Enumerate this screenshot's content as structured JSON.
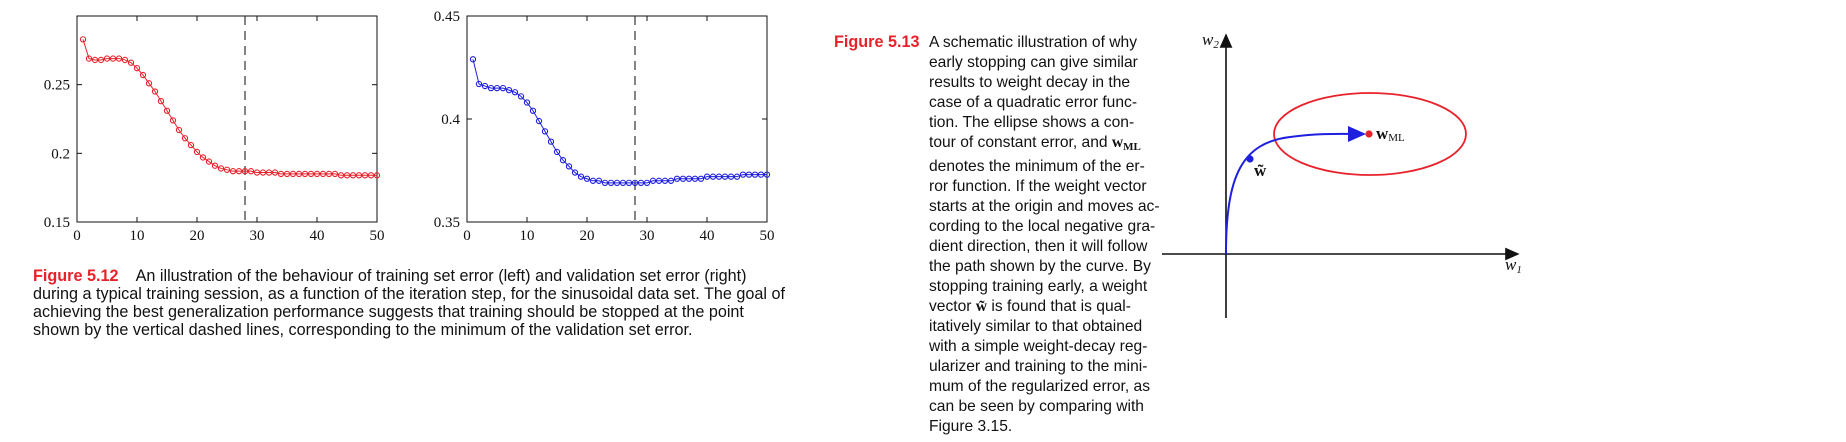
{
  "charts": [
    {
      "type": "scatter",
      "series": [
        {
          "x": [
            1,
            2,
            3,
            4,
            5,
            6,
            7,
            8,
            9,
            10,
            11,
            12,
            13,
            14,
            15,
            16,
            17,
            18,
            19,
            20,
            21,
            22,
            23,
            24,
            25,
            26,
            27,
            28,
            29,
            30,
            31,
            32,
            33,
            34,
            35,
            36,
            37,
            38,
            39,
            40,
            41,
            42,
            43,
            44,
            45,
            46,
            47,
            48,
            49,
            50
          ],
          "values": [
            0.283,
            0.269,
            0.268,
            0.268,
            0.269,
            0.269,
            0.269,
            0.268,
            0.266,
            0.262,
            0.257,
            0.251,
            0.245,
            0.238,
            0.231,
            0.224,
            0.217,
            0.211,
            0.206,
            0.201,
            0.197,
            0.194,
            0.191,
            0.189,
            0.188,
            0.187,
            0.187,
            0.187,
            0.187,
            0.186,
            0.186,
            0.186,
            0.186,
            0.185,
            0.185,
            0.185,
            0.185,
            0.185,
            0.185,
            0.185,
            0.185,
            0.185,
            0.185,
            0.184,
            0.184,
            0.184,
            0.184,
            0.184,
            0.184,
            0.184
          ],
          "color": "#e8222a"
        }
      ],
      "xlim": [
        0,
        50
      ],
      "ylim": [
        0.15,
        0.3
      ],
      "xticks": [
        "0",
        "10",
        "20",
        "30",
        "40",
        "50"
      ],
      "yticks": [
        "0.15",
        "0.2",
        "0.25"
      ],
      "vline_x": 28
    },
    {
      "type": "scatter",
      "series": [
        {
          "x": [
            1,
            2,
            3,
            4,
            5,
            6,
            7,
            8,
            9,
            10,
            11,
            12,
            13,
            14,
            15,
            16,
            17,
            18,
            19,
            20,
            21,
            22,
            23,
            24,
            25,
            26,
            27,
            28,
            29,
            30,
            31,
            32,
            33,
            34,
            35,
            36,
            37,
            38,
            39,
            40,
            41,
            42,
            43,
            44,
            45,
            46,
            47,
            48,
            49,
            50
          ],
          "values": [
            0.429,
            0.417,
            0.416,
            0.415,
            0.415,
            0.415,
            0.414,
            0.413,
            0.411,
            0.408,
            0.404,
            0.399,
            0.394,
            0.389,
            0.384,
            0.38,
            0.377,
            0.374,
            0.372,
            0.371,
            0.37,
            0.37,
            0.369,
            0.369,
            0.369,
            0.369,
            0.369,
            0.369,
            0.369,
            0.369,
            0.37,
            0.37,
            0.37,
            0.37,
            0.371,
            0.371,
            0.371,
            0.371,
            0.371,
            0.372,
            0.372,
            0.372,
            0.372,
            0.372,
            0.372,
            0.373,
            0.373,
            0.373,
            0.373,
            0.373
          ],
          "color": "#1f1fe0"
        }
      ],
      "xlim": [
        0,
        50
      ],
      "ylim": [
        0.35,
        0.45
      ],
      "xticks": [
        "0",
        "10",
        "20",
        "30",
        "40",
        "50"
      ],
      "yticks": [
        "0.35",
        "0.4",
        "0.45"
      ],
      "vline_x": 28
    }
  ],
  "fig512": {
    "label": "Figure 5.12",
    "text": "An illustration of the behaviour of training set error (left) and validation set error (right) during a typical training session, as a function of the iteration step, for the sinusoidal data set. The goal of achieving the best generalization performance suggests that training should be stopped at the point shown by the vertical dashed lines, corresponding to the minimum of the validation set error."
  },
  "fig513": {
    "label": "Figure 5.13",
    "lines": [
      "A schematic illustration of why",
      "early stopping can give similar",
      "results to weight decay in the",
      "case of a quadratic error func-",
      "tion.  The ellipse shows a con-",
      "tour of constant error, and {wML}",
      "denotes the minimum of the er-",
      "ror function.  If the weight vector",
      "starts at the origin and moves ac-",
      "cording to the local negative gra-",
      "dient direction, then it will follow",
      "the path shown by the curve.  By",
      "stopping training early, a weight",
      "vector {wtilde} is found that is qual-",
      "itatively similar to that obtained",
      "with a simple weight-decay reg-",
      "ularizer and training to the mini-",
      "mum of the regularized error, as",
      "can be seen by comparing with",
      "Figure 3.15."
    ]
  },
  "diagram": {
    "w1": "w",
    "w1_sub": "1",
    "w2": "w",
    "w2_sub": "2",
    "wml": "w",
    "wml_sub": "ML",
    "wtilde": "w̃",
    "colors": {
      "ellipse": "#e8222a",
      "path": "#1f1fe0",
      "minimum": "#e8222a"
    }
  }
}
